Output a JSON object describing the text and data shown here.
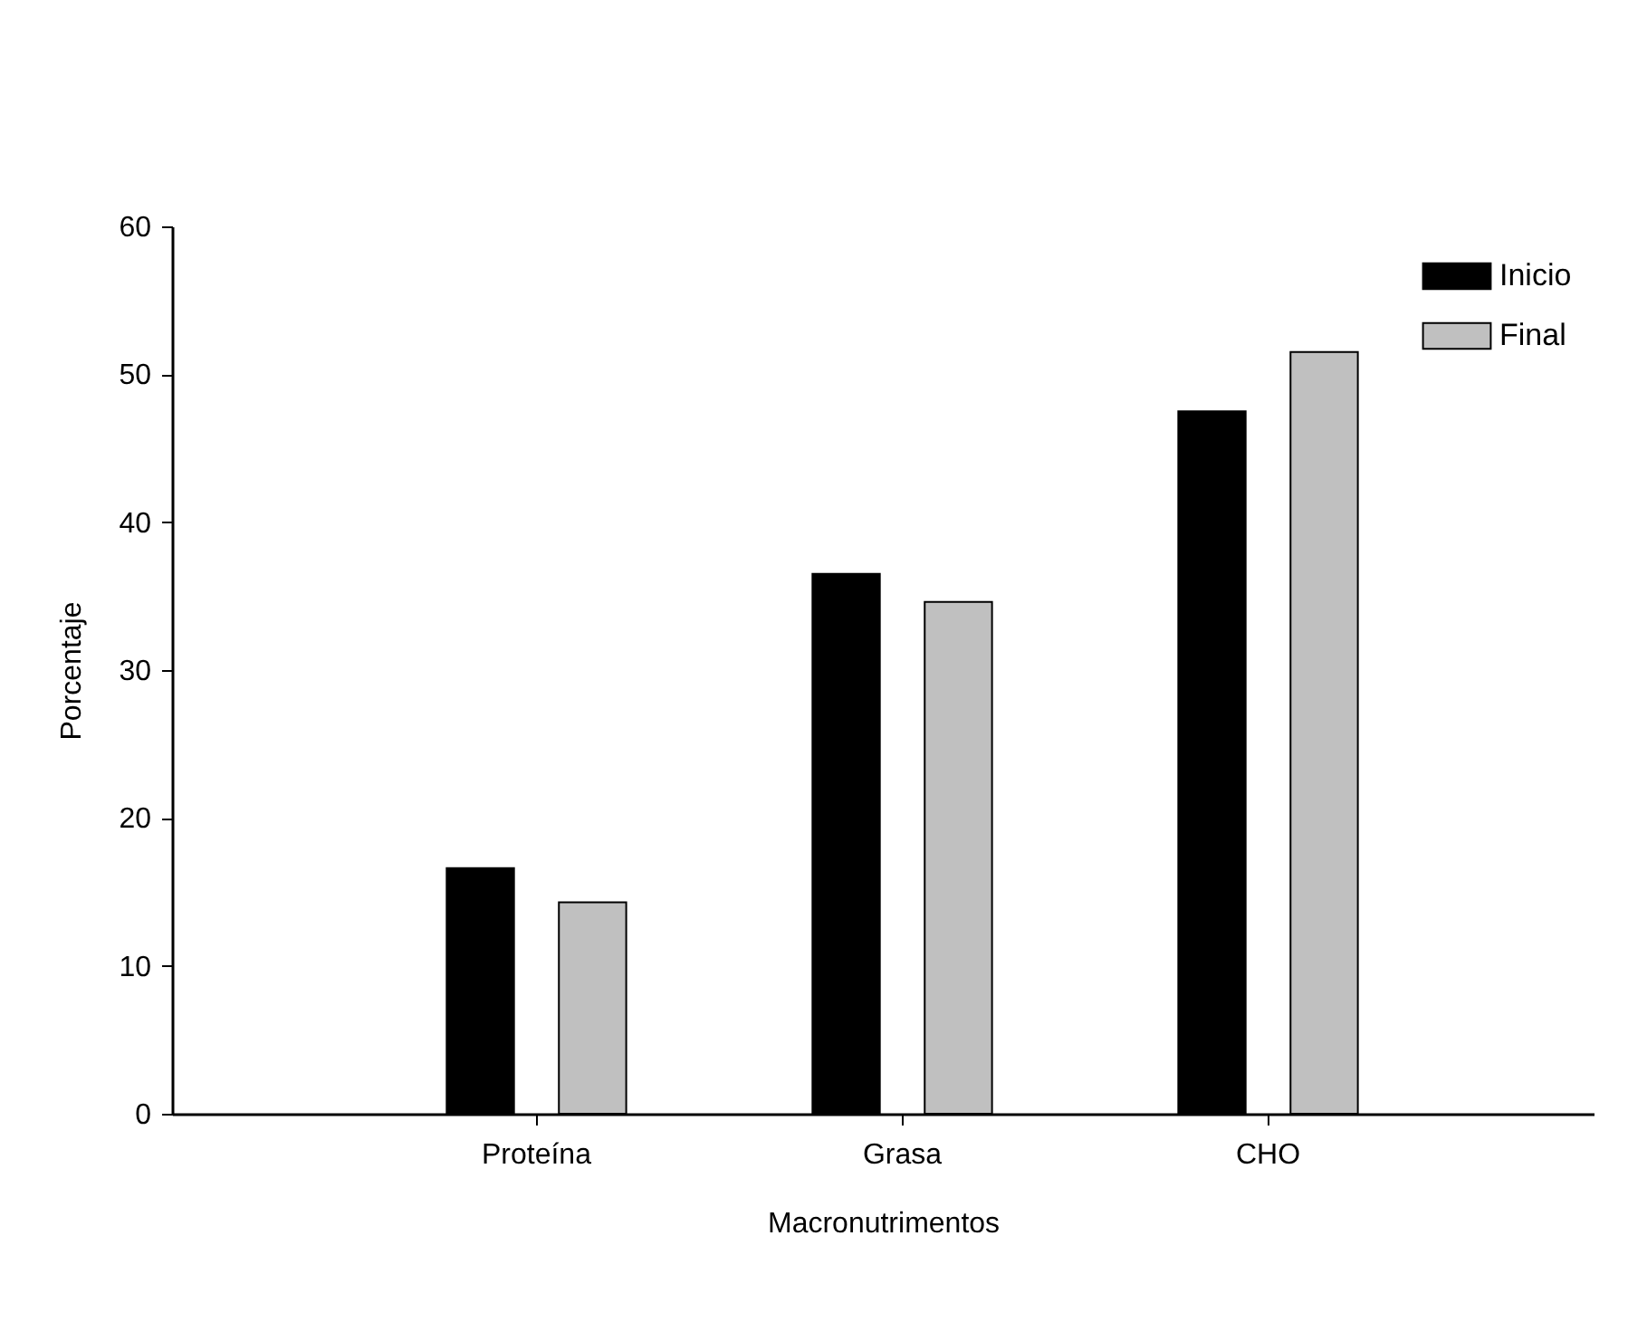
{
  "chart_data": {
    "type": "bar",
    "xlabel": "Macronutrimentos",
    "ylabel": "Porcentaje",
    "categories": [
      "Proteína",
      "Grasa",
      "CHO"
    ],
    "series": [
      {
        "name": "Inicio",
        "color": "#000000",
        "values": [
          16.6,
          36.5,
          47.5
        ]
      },
      {
        "name": "Final",
        "color": "#c0c0c0",
        "values": [
          14.3,
          34.6,
          51.5
        ]
      }
    ],
    "ylim": [
      0,
      60
    ],
    "yticks": [
      0,
      10,
      20,
      30,
      40,
      50,
      60
    ],
    "grid": false,
    "legend": "top right"
  }
}
